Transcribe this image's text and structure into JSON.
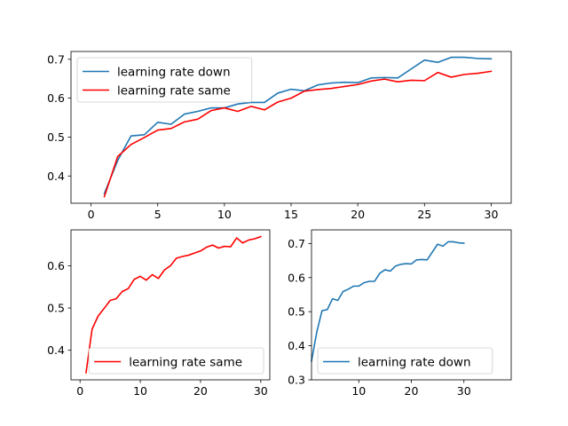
{
  "colors": {
    "down": "#1f77b4",
    "same": "#ff0000"
  },
  "chart_data": [
    {
      "type": "line",
      "title": "",
      "xlabel": "",
      "ylabel": "",
      "xlim": [
        -1.5,
        31.5
      ],
      "ylim": [
        0.33,
        0.72
      ],
      "xticks": [
        0,
        5,
        10,
        15,
        20,
        25,
        30
      ],
      "yticks": [
        0.4,
        0.5,
        0.6,
        0.7
      ],
      "legend": "upper-left",
      "grid": false,
      "series": [
        {
          "name": "learning rate down",
          "color": "#1f77b4",
          "x": [
            1,
            2,
            3,
            4,
            5,
            6,
            7,
            8,
            9,
            10,
            11,
            12,
            13,
            14,
            15,
            16,
            17,
            18,
            19,
            20,
            21,
            22,
            23,
            24,
            25,
            26,
            27,
            28,
            29,
            30
          ],
          "y": [
            0.355,
            0.44,
            0.503,
            0.506,
            0.538,
            0.533,
            0.559,
            0.566,
            0.575,
            0.575,
            0.585,
            0.589,
            0.589,
            0.613,
            0.623,
            0.619,
            0.634,
            0.639,
            0.641,
            0.64,
            0.652,
            0.653,
            0.652,
            0.675,
            0.698,
            0.692,
            0.705,
            0.705,
            0.702,
            0.701
          ]
        },
        {
          "name": "learning rate same",
          "color": "#ff0000",
          "x": [
            1,
            2,
            3,
            4,
            5,
            6,
            7,
            8,
            9,
            10,
            11,
            12,
            13,
            14,
            15,
            16,
            17,
            18,
            19,
            20,
            21,
            22,
            23,
            24,
            25,
            26,
            27,
            28,
            29,
            30
          ],
          "y": [
            0.347,
            0.45,
            0.481,
            0.499,
            0.518,
            0.522,
            0.539,
            0.546,
            0.568,
            0.575,
            0.566,
            0.579,
            0.57,
            0.59,
            0.6,
            0.618,
            0.622,
            0.625,
            0.63,
            0.635,
            0.644,
            0.649,
            0.642,
            0.646,
            0.645,
            0.666,
            0.654,
            0.661,
            0.664,
            0.669
          ]
        }
      ]
    },
    {
      "type": "line",
      "title": "",
      "xlabel": "",
      "ylabel": "",
      "xlim": [
        -1.5,
        31.5
      ],
      "ylim": [
        0.33,
        0.685
      ],
      "xticks": [
        0,
        10,
        20,
        30
      ],
      "yticks": [
        0.4,
        0.5,
        0.6
      ],
      "legend": "lower-right",
      "grid": false,
      "series": [
        {
          "name": "learning rate same",
          "color": "#ff0000",
          "x": [
            1,
            2,
            3,
            4,
            5,
            6,
            7,
            8,
            9,
            10,
            11,
            12,
            13,
            14,
            15,
            16,
            17,
            18,
            19,
            20,
            21,
            22,
            23,
            24,
            25,
            26,
            27,
            28,
            29,
            30
          ],
          "y": [
            0.347,
            0.45,
            0.481,
            0.499,
            0.518,
            0.522,
            0.539,
            0.546,
            0.568,
            0.575,
            0.566,
            0.579,
            0.57,
            0.59,
            0.6,
            0.618,
            0.622,
            0.625,
            0.63,
            0.635,
            0.644,
            0.649,
            0.642,
            0.646,
            0.645,
            0.666,
            0.654,
            0.661,
            0.664,
            0.669
          ]
        }
      ]
    },
    {
      "type": "line",
      "title": "",
      "xlabel": "",
      "ylabel": "",
      "xlim": [
        1,
        39
      ],
      "ylim": [
        0.3,
        0.74
      ],
      "xticks": [
        10,
        20,
        30
      ],
      "yticks": [
        0.3,
        0.4,
        0.5,
        0.6,
        0.7
      ],
      "legend": "lower-left",
      "grid": false,
      "series": [
        {
          "name": "learning rate down",
          "color": "#1f77b4",
          "x": [
            1,
            2,
            3,
            4,
            5,
            6,
            7,
            8,
            9,
            10,
            11,
            12,
            13,
            14,
            15,
            16,
            17,
            18,
            19,
            20,
            21,
            22,
            23,
            24,
            25,
            26,
            27,
            28,
            29,
            30
          ],
          "y": [
            0.355,
            0.44,
            0.503,
            0.506,
            0.538,
            0.533,
            0.559,
            0.566,
            0.575,
            0.575,
            0.585,
            0.589,
            0.589,
            0.613,
            0.623,
            0.619,
            0.634,
            0.639,
            0.641,
            0.64,
            0.652,
            0.653,
            0.652,
            0.675,
            0.698,
            0.692,
            0.705,
            0.705,
            0.702,
            0.701
          ]
        }
      ]
    }
  ]
}
